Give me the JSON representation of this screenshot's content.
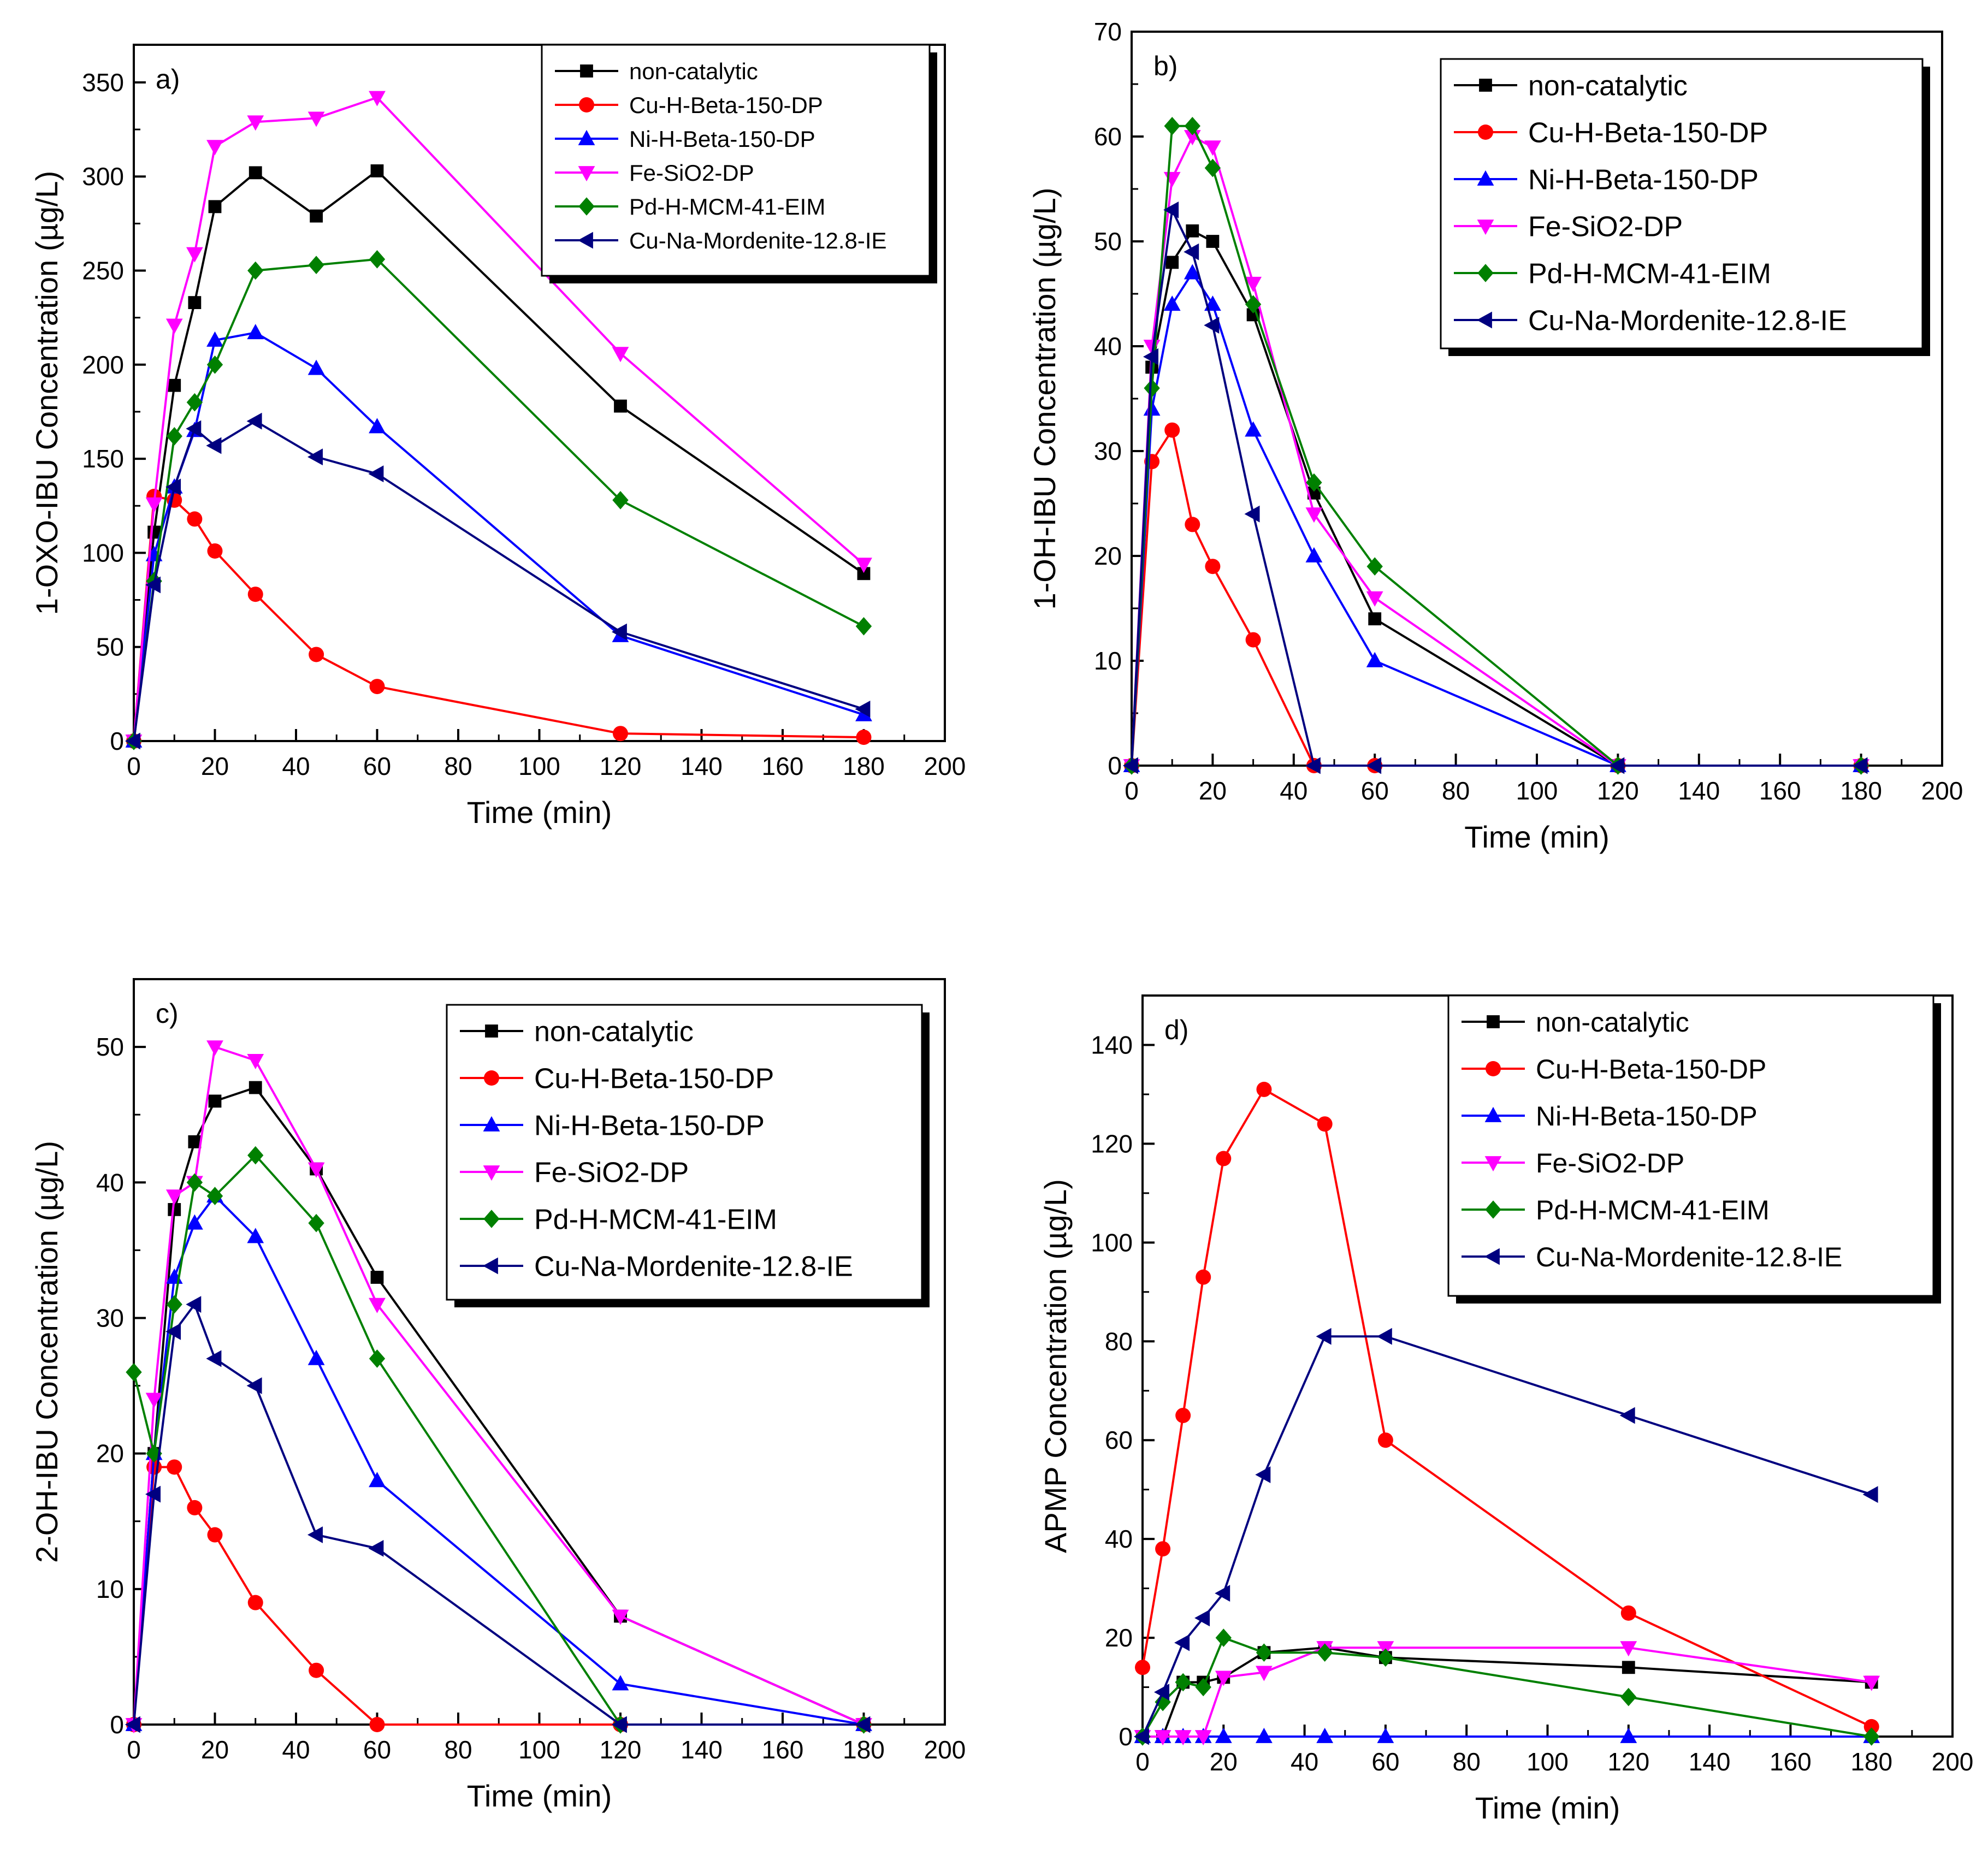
{
  "legend_series": [
    "non-catalytic",
    "Cu-H-Beta-150-DP",
    "Ni-H-Beta-150-DP",
    "Fe-SiO2-DP",
    "Pd-H-MCM-41-EIM",
    "Cu-Na-Mordenite-12.8-IE"
  ],
  "series_styles": [
    {
      "name": "non-catalytic",
      "color": "#000000",
      "marker": "square"
    },
    {
      "name": "Cu-H-Beta-150-DP",
      "color": "#ff0000",
      "marker": "circle"
    },
    {
      "name": "Ni-H-Beta-150-DP",
      "color": "#0000ff",
      "marker": "triangle-up"
    },
    {
      "name": "Fe-SiO2-DP",
      "color": "#ff00ff",
      "marker": "triangle-down"
    },
    {
      "name": "Pd-H-MCM-41-EIM",
      "color": "#008000",
      "marker": "diamond"
    },
    {
      "name": "Cu-Na-Mordenite-12.8-IE",
      "color": "#000080",
      "marker": "triangle-left"
    }
  ],
  "chart_data": [
    {
      "type": "line",
      "panel": "a)",
      "xlabel": "Time (min)",
      "ylabel": "1-OXO-IBU Concentration (µg/L)",
      "xlim": [
        0,
        200
      ],
      "ylim": [
        0,
        370
      ],
      "xticks": [
        0,
        20,
        40,
        60,
        80,
        100,
        120,
        140,
        160,
        180,
        200
      ],
      "yticks": [
        0,
        50,
        100,
        150,
        200,
        250,
        300,
        350
      ],
      "legend": "top-right",
      "x": [
        0,
        5,
        10,
        15,
        20,
        30,
        45,
        60,
        120,
        180
      ],
      "series": [
        {
          "name": "non-catalytic",
          "values": [
            0,
            111,
            189,
            233,
            284,
            302,
            279,
            303,
            178,
            89
          ]
        },
        {
          "name": "Cu-H-Beta-150-DP",
          "values": [
            0,
            130,
            128,
            118,
            101,
            78,
            46,
            29,
            4,
            2
          ]
        },
        {
          "name": "Ni-H-Beta-150-DP",
          "values": [
            0,
            99,
            135,
            165,
            213,
            217,
            198,
            167,
            56,
            14
          ]
        },
        {
          "name": "Fe-SiO2-DP",
          "values": [
            0,
            126,
            221,
            259,
            316,
            329,
            331,
            342,
            206,
            94
          ]
        },
        {
          "name": "Pd-H-MCM-41-EIM",
          "values": [
            0,
            85,
            162,
            180,
            200,
            250,
            253,
            256,
            128,
            61
          ]
        },
        {
          "name": "Cu-Na-Mordenite-12.8-IE",
          "values": [
            0,
            83,
            135,
            166,
            157,
            170,
            151,
            142,
            58,
            17
          ]
        }
      ]
    },
    {
      "type": "line",
      "panel": "b)",
      "xlabel": "Time (min)",
      "ylabel": "1-OH-IBU Concentration (µg/L)",
      "xlim": [
        0,
        200
      ],
      "ylim": [
        0,
        70
      ],
      "xticks": [
        0,
        20,
        40,
        60,
        80,
        100,
        120,
        140,
        160,
        180,
        200
      ],
      "yticks": [
        0,
        10,
        20,
        30,
        40,
        50,
        60,
        70
      ],
      "legend": "top-right",
      "x": [
        0,
        5,
        10,
        15,
        20,
        30,
        45,
        60,
        120,
        180
      ],
      "series": [
        {
          "name": "non-catalytic",
          "values": [
            0,
            38,
            48,
            51,
            50,
            43,
            26,
            14,
            0,
            0
          ]
        },
        {
          "name": "Cu-H-Beta-150-DP",
          "values": [
            0,
            29,
            32,
            23,
            19,
            12,
            0,
            0,
            0,
            0
          ]
        },
        {
          "name": "Ni-H-Beta-150-DP",
          "values": [
            0,
            34,
            44,
            47,
            44,
            32,
            20,
            10,
            0,
            0
          ]
        },
        {
          "name": "Fe-SiO2-DP",
          "values": [
            0,
            40,
            56,
            60,
            59,
            46,
            24,
            16,
            0,
            0
          ]
        },
        {
          "name": "Pd-H-MCM-41-EIM",
          "values": [
            0,
            36,
            61,
            61,
            57,
            44,
            27,
            19,
            0,
            0
          ]
        },
        {
          "name": "Cu-Na-Mordenite-12.8-IE",
          "values": [
            0,
            39,
            53,
            49,
            42,
            24,
            0,
            0,
            0,
            0
          ]
        }
      ]
    },
    {
      "type": "line",
      "panel": "c)",
      "xlabel": "Time (min)",
      "ylabel": "2-OH-IBU Concentration (µg/L)",
      "xlim": [
        0,
        200
      ],
      "ylim": [
        0,
        55
      ],
      "xticks": [
        0,
        20,
        40,
        60,
        80,
        100,
        120,
        140,
        160,
        180,
        200
      ],
      "yticks": [
        0,
        10,
        20,
        30,
        40,
        50
      ],
      "legend": "top-right",
      "x": [
        0,
        5,
        10,
        15,
        20,
        30,
        45,
        60,
        120,
        180
      ],
      "series": [
        {
          "name": "non-catalytic",
          "values": [
            0,
            20,
            38,
            43,
            46,
            47,
            41,
            33,
            8,
            0
          ]
        },
        {
          "name": "Cu-H-Beta-150-DP",
          "values": [
            0,
            19,
            19,
            16,
            14,
            9,
            4,
            0,
            0,
            0
          ]
        },
        {
          "name": "Ni-H-Beta-150-DP",
          "values": [
            0,
            20,
            33,
            37,
            39,
            36,
            27,
            18,
            3,
            0
          ]
        },
        {
          "name": "Fe-SiO2-DP",
          "values": [
            0,
            24,
            39,
            40,
            50,
            49,
            41,
            31,
            8,
            0
          ]
        },
        {
          "name": "Pd-H-MCM-41-EIM",
          "values": [
            26,
            20,
            31,
            40,
            39,
            42,
            37,
            27,
            0,
            0
          ]
        },
        {
          "name": "Cu-Na-Mordenite-12.8-IE",
          "values": [
            0,
            17,
            29,
            31,
            27,
            25,
            14,
            13,
            0,
            0
          ]
        }
      ]
    },
    {
      "type": "line",
      "panel": "d)",
      "xlabel": "Time (min)",
      "ylabel": "APMP Concentration (µg/L)",
      "xlim": [
        0,
        200
      ],
      "ylim": [
        0,
        150
      ],
      "xticks": [
        0,
        20,
        40,
        60,
        80,
        100,
        120,
        140,
        160,
        180,
        200
      ],
      "yticks": [
        0,
        20,
        40,
        60,
        80,
        100,
        120,
        140
      ],
      "legend": "top-right",
      "x": [
        0,
        5,
        10,
        15,
        20,
        30,
        45,
        60,
        120,
        180
      ],
      "series": [
        {
          "name": "non-catalytic",
          "values": [
            0,
            0,
            11,
            11,
            12,
            17,
            18,
            16,
            14,
            11
          ]
        },
        {
          "name": "Cu-H-Beta-150-DP",
          "values": [
            14,
            38,
            65,
            93,
            117,
            131,
            124,
            60,
            25,
            2
          ]
        },
        {
          "name": "Ni-H-Beta-150-DP",
          "values": [
            0,
            0,
            0,
            0,
            0,
            0,
            0,
            0,
            0,
            0
          ]
        },
        {
          "name": "Fe-SiO2-DP",
          "values": [
            0,
            0,
            0,
            0,
            12,
            13,
            18,
            18,
            18,
            11
          ]
        },
        {
          "name": "Pd-H-MCM-41-EIM",
          "values": [
            0,
            7,
            11,
            10,
            20,
            17,
            17,
            16,
            8,
            0
          ]
        },
        {
          "name": "Cu-Na-Mordenite-12.8-IE",
          "values": [
            0,
            9,
            19,
            24,
            29,
            53,
            81,
            81,
            65,
            49
          ]
        }
      ]
    }
  ]
}
